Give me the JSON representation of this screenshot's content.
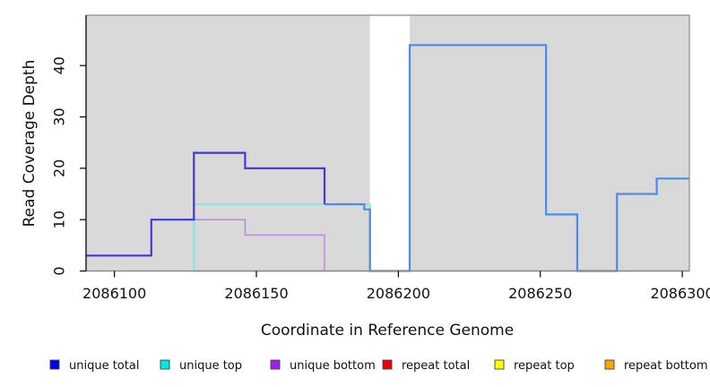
{
  "chart_data": {
    "type": "line",
    "subtype": "step-coverage-plot",
    "title": "",
    "xlabel": "Coordinate in Reference Genome",
    "ylabel": "Read Coverage Depth",
    "xlim": [
      2086090,
      2086302.5
    ],
    "ylim": [
      0,
      49.8
    ],
    "xticks": [
      2086100,
      2086150,
      2086200,
      2086250,
      2086300
    ],
    "yticks": [
      0,
      10,
      20,
      30,
      40
    ],
    "grid": false,
    "plot_background": "#D9D9D9",
    "no_data_region": {
      "x0": 2086190,
      "x1": 2086204,
      "color": "#FFFFFF"
    },
    "legend_position": "bottom",
    "legend": [
      {
        "label": "unique total",
        "color": "#0000EE"
      },
      {
        "label": "unique top",
        "color": "#00E6E6"
      },
      {
        "label": "unique bottom",
        "color": "#A020F0"
      },
      {
        "label": "repeat total",
        "color": "#EE0000"
      },
      {
        "label": "repeat top",
        "color": "#FFFF00"
      },
      {
        "label": "repeat bottom",
        "color": "#FFA500"
      }
    ],
    "series": [
      {
        "name": "unique total",
        "steps": [
          [
            2086090,
            3
          ],
          [
            2086113,
            10
          ],
          [
            2086128,
            23
          ],
          [
            2086146,
            20
          ],
          [
            2086174,
            13
          ],
          [
            2086188,
            12
          ],
          [
            2086190,
            0
          ],
          [
            2086204,
            44
          ],
          [
            2086252,
            11
          ],
          [
            2086263,
            0
          ],
          [
            2086277,
            15
          ],
          [
            2086291,
            18
          ]
        ],
        "end_x": 2086302.5
      },
      {
        "name": "unique top",
        "steps": [
          [
            2086090,
            0
          ],
          [
            2086128,
            13
          ],
          [
            2086190,
            0
          ]
        ],
        "end_x": 2086302.5
      },
      {
        "name": "unique bottom",
        "steps": [
          [
            2086090,
            0
          ],
          [
            2086128,
            10
          ],
          [
            2086146,
            7
          ],
          [
            2086174,
            0
          ]
        ],
        "end_x": 2086302.5
      },
      {
        "name": "repeat total",
        "steps": [
          [
            2086090,
            0
          ]
        ],
        "end_x": 2086302.5
      },
      {
        "name": "repeat top",
        "steps": [
          [
            2086090,
            0
          ]
        ],
        "end_x": 2086302.5
      },
      {
        "name": "repeat bottom",
        "steps": [
          [
            2086090,
            0
          ]
        ],
        "end_x": 2086302.5
      }
    ],
    "render_layers": [
      {
        "name": "baseline-green-blend",
        "color": "#8FCA8F",
        "width": 1.6,
        "steps": [
          [
            2086090,
            0
          ]
        ],
        "end_x": 2086128
      },
      {
        "name": "baseline-orange",
        "color": "#FF9E2E",
        "width": 2.0,
        "steps": [
          [
            2086128,
            0
          ]
        ],
        "end_x": 2086174
      },
      {
        "name": "baseline-red",
        "color": "#E25C7C",
        "width": 1.6,
        "steps": [
          [
            2086174,
            0
          ]
        ],
        "end_x": 2086302.5
      },
      {
        "name": "unique-bottom-line",
        "color": "#BE8BE2",
        "width": 1.6,
        "steps": [
          [
            2086128,
            0
          ],
          [
            2086128,
            10
          ],
          [
            2086146,
            7
          ],
          [
            2086174,
            0
          ]
        ],
        "end_x": 2086174
      },
      {
        "name": "unique-top-line",
        "color": "#7CE8E8",
        "width": 1.8,
        "steps": [
          [
            2086128,
            0
          ],
          [
            2086128,
            13
          ],
          [
            2086190,
            0
          ]
        ],
        "end_x": 2086190
      },
      {
        "name": "unique-total-left",
        "color": "#4038D8",
        "width": 2.2,
        "steps": [
          [
            2086090,
            3
          ],
          [
            2086113,
            10
          ],
          [
            2086128,
            23
          ],
          [
            2086146,
            20
          ],
          [
            2086174,
            13
          ]
        ],
        "end_x": 2086174
      },
      {
        "name": "unique-total-right",
        "color": "#4A8CEC",
        "width": 2.2,
        "steps": [
          [
            2086174,
            13
          ],
          [
            2086188,
            12
          ],
          [
            2086190,
            0
          ],
          [
            2086204,
            44
          ],
          [
            2086252,
            11
          ],
          [
            2086263,
            0
          ],
          [
            2086277,
            15
          ],
          [
            2086291,
            18
          ]
        ],
        "end_x": 2086302.5
      }
    ]
  }
}
